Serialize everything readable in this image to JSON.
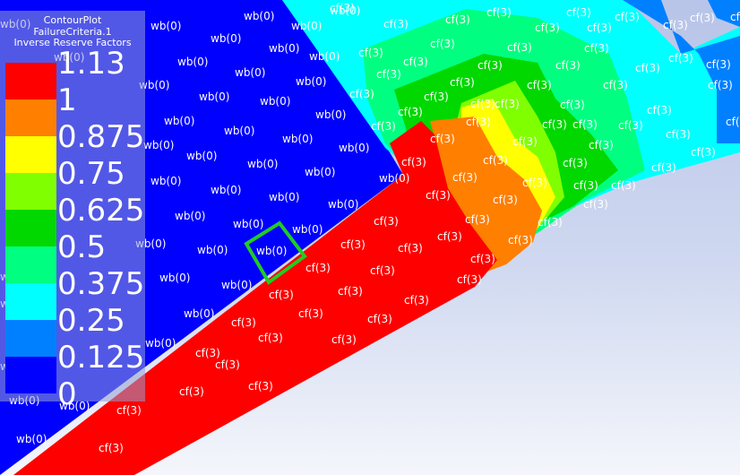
{
  "legend": {
    "title": "ContourPlot",
    "subtitle": "FailureCriteria.1",
    "quantity": "Inverse Reserve Factors",
    "ticks": [
      "1.13",
      "1",
      "0.875",
      "0.75",
      "0.625",
      "0.5",
      "0.375",
      "0.25",
      "0.125",
      "0"
    ],
    "colors": [
      "#ff0000",
      "#ff7f00",
      "#ffff00",
      "#80ff00",
      "#00d800",
      "#00ff80",
      "#00ffff",
      "#0080ff",
      "#0000ff"
    ]
  },
  "viewport": {
    "background_top": "#b8c4e8",
    "background_bottom": "#f4f6fb",
    "wb_region_color": "#0000ff",
    "cf_region_color": "#ff0000",
    "selection_color": "#22cc22"
  },
  "element_labels": {
    "wb": [
      "wb(0)",
      "wb(0)",
      "wb(0)",
      "wb(0)",
      "wb(0)",
      "wb(0)",
      "wb(0)",
      "wb(0)",
      "wb(0)",
      "wb(0)",
      "wb(0)",
      "wb(0)",
      "wb(0)",
      "wb(0)",
      "wb(0)",
      "wb(0)",
      "wb(0)",
      "wb(0)",
      "wb(0)",
      "wb(0)",
      "wb(0)",
      "wb(0)",
      "wb(0)",
      "wb(0)",
      "wb(0)",
      "wb(0)",
      "wb(0)",
      "wb(0)",
      "wb(0)",
      "wb(0)",
      "wb(0)",
      "wb(0)",
      "wb(0)",
      "wb(0)",
      "wb(0)",
      "wb(0)",
      "wb(0)",
      "wb(0)",
      "wb(0)",
      "wb(0)",
      "wb(0)",
      "wb(0)",
      "wb(0)",
      "wb(0)"
    ],
    "cf": [
      "cf(3)",
      "cf(3)",
      "cf(3)",
      "cf(3)",
      "cf(3)",
      "cf(3)",
      "cf(3)",
      "cf(3)",
      "cf(3)",
      "cf(3)",
      "cf(3)",
      "cf(3)",
      "cf(3)",
      "cf(3)",
      "cf(3)",
      "cf(3)",
      "cf(3)",
      "cf(3)",
      "cf(3)",
      "cf(3)",
      "cf(3)",
      "cf(3)",
      "cf(3)",
      "cf(3)",
      "cf(3)",
      "cf(3)",
      "cf(3)",
      "cf(3)",
      "cf(3)",
      "cf(3)",
      "cf(3)",
      "cf(3)",
      "cf(3)",
      "cf(3)",
      "cf(3)",
      "cf(3)",
      "cf(3)",
      "cf(3)",
      "cf(3)",
      "cf(3)",
      "cf(3)",
      "cf(3)",
      "cf(3)",
      "cf(3)",
      "cf(3)",
      "cf(3)",
      "cf(3)",
      "cf(3)",
      "cf(3)",
      "cf(3)",
      "cf(3)",
      "cf(3)",
      "cf(3)",
      "cf(3)",
      "cf(3)",
      "cf(3)",
      "cf(3)",
      "cf(3)",
      "cf(3)",
      "cf(3)",
      "cf(3)",
      "cf(3)",
      "cf(3)",
      "cf(3)",
      "cf(3)",
      "cf(3)",
      "cf(3)",
      "cf(3)",
      "cf(3)",
      "cf(3)",
      "cf(3)",
      "cf(3)",
      "cf(3)",
      "cf(3)",
      "cf(3)",
      "cf(3)",
      "cf(3)",
      "cf(3)",
      "cf(3)",
      "cf(3)"
    ],
    "selected": "wb(0)"
  }
}
